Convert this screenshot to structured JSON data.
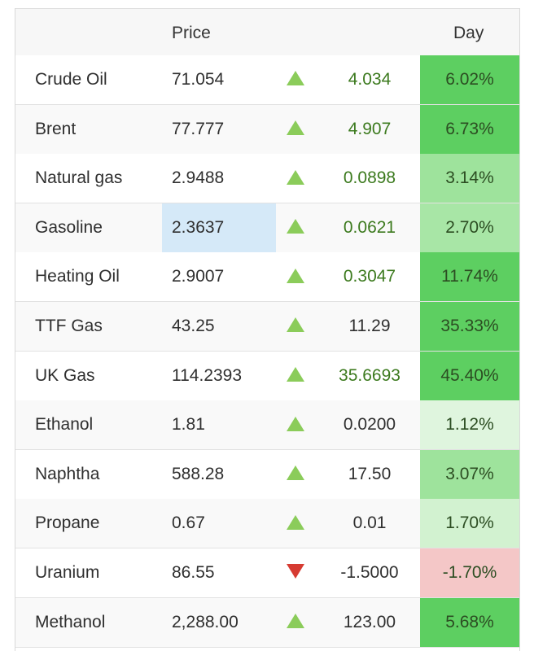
{
  "header": {
    "price_label": "Price",
    "day_label": "Day"
  },
  "colors": {
    "up_arrow": "#8bcc5a",
    "down_arrow": "#d63b32",
    "positive_text": "#3c7a1e",
    "strong_gain": "#5dcf61",
    "medium_gain": "#9ee39c",
    "light_gain": "#d9f4d8",
    "loss": "#f4c7c7",
    "highlight_cell": "#d5e9f8"
  },
  "rows": [
    {
      "name": "Crude Oil",
      "price": "71.054",
      "direction": "up",
      "change": "4.034",
      "change_colored": true,
      "pct": "6.02%",
      "pct_color": "#5dcf61"
    },
    {
      "name": "Brent",
      "price": "77.777",
      "direction": "up",
      "change": "4.907",
      "change_colored": true,
      "pct": "6.73%",
      "pct_color": "#5dcf61"
    },
    {
      "name": "Natural gas",
      "price": "2.9488",
      "direction": "up",
      "change": "0.0898",
      "change_colored": true,
      "pct": "3.14%",
      "pct_color": "#9ee39c"
    },
    {
      "name": "Gasoline",
      "price": "2.3637",
      "direction": "up",
      "change": "0.0621",
      "change_colored": true,
      "pct": "2.70%",
      "pct_color": "#a8e6a6",
      "price_highlight": true
    },
    {
      "name": "Heating Oil",
      "price": "2.9007",
      "direction": "up",
      "change": "0.3047",
      "change_colored": true,
      "pct": "11.74%",
      "pct_color": "#5dcf61"
    },
    {
      "name": "TTF Gas",
      "price": "43.25",
      "direction": "up",
      "change": "11.29",
      "change_colored": false,
      "pct": "35.33%",
      "pct_color": "#5dcf61"
    },
    {
      "name": "UK Gas",
      "price": "114.2393",
      "direction": "up",
      "change": "35.6693",
      "change_colored": true,
      "pct": "45.40%",
      "pct_color": "#5dcf61"
    },
    {
      "name": "Ethanol",
      "price": "1.81",
      "direction": "up",
      "change": "0.0200",
      "change_colored": false,
      "pct": "1.12%",
      "pct_color": "#dff5de"
    },
    {
      "name": "Naphtha",
      "price": "588.28",
      "direction": "up",
      "change": "17.50",
      "change_colored": false,
      "pct": "3.07%",
      "pct_color": "#9ee39c"
    },
    {
      "name": "Propane",
      "price": "0.67",
      "direction": "up",
      "change": "0.01",
      "change_colored": false,
      "pct": "1.70%",
      "pct_color": "#d2f2d0"
    },
    {
      "name": "Uranium",
      "price": "86.55",
      "direction": "down",
      "change": "-1.5000",
      "change_colored": false,
      "pct": "-1.70%",
      "pct_color": "#f4c7c7"
    },
    {
      "name": "Methanol",
      "price": "2,288.00",
      "direction": "up",
      "change": "123.00",
      "change_colored": false,
      "pct": "5.68%",
      "pct_color": "#5dcf61"
    }
  ]
}
